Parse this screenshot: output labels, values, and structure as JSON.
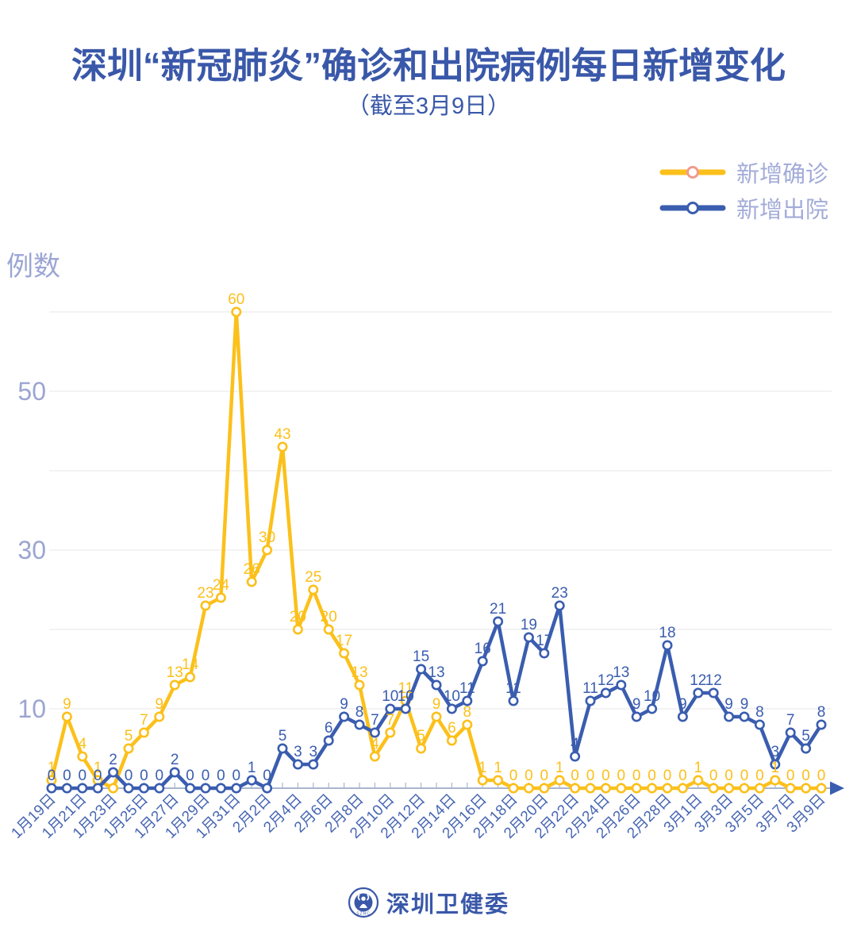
{
  "page": {
    "title": "深圳“新冠肺炎”确诊和出院病例每日新增变化",
    "subtitle": "（截至3月9日）",
    "footer_brand": "深圳卫健委",
    "footer_logo_letters": "SZHC"
  },
  "colors": {
    "background": "#FFFFFF",
    "title_text": "#3A58A9",
    "accent_confirmed": "#FBC01B",
    "accent_discharged": "#3A5DAF",
    "legend_text": "#A3ACD8",
    "axis_unit_text": "#9CA6D4",
    "y_tick_text": "#9BA5D2",
    "x_tick_text": "#4766B3",
    "gridline": "#E7E7E7",
    "axis_line": "#A9B6CE",
    "legend_confirmed_marker_ring": "#F09B8F"
  },
  "chart_data": {
    "type": "line",
    "title": "深圳“新冠肺炎”确诊和出院病例每日新增变化（截至3月9日）",
    "xlabel": "",
    "ylabel": "例数",
    "ylim": [
      0,
      62
    ],
    "grid": true,
    "legend_position": "top-right",
    "yticks_labeled": [
      10,
      30,
      50
    ],
    "gridline_values": [
      10,
      20,
      30,
      40,
      50,
      60
    ],
    "x_label_every": 2,
    "x": [
      "1月19日",
      "1月20日",
      "1月21日",
      "1月22日",
      "1月23日",
      "1月24日",
      "1月25日",
      "1月26日",
      "1月27日",
      "1月28日",
      "1月29日",
      "1月30日",
      "1月31日",
      "2月1日",
      "2月2日",
      "2月3日",
      "2月4日",
      "2月5日",
      "2月6日",
      "2月7日",
      "2月8日",
      "2月9日",
      "2月10日",
      "2月11日",
      "2月12日",
      "2月13日",
      "2月14日",
      "2月15日",
      "2月16日",
      "2月17日",
      "2月18日",
      "2月19日",
      "2月20日",
      "2月21日",
      "2月22日",
      "2月23日",
      "2月24日",
      "2月25日",
      "2月26日",
      "2月27日",
      "2月28日",
      "2月29日",
      "3月1日",
      "3月2日",
      "3月3日",
      "3月4日",
      "3月5日",
      "3月6日",
      "3月7日",
      "3月8日",
      "3月9日"
    ],
    "series": [
      {
        "name": "新增确诊",
        "color": "#FBC01B",
        "values": [
          1,
          9,
          4,
          1,
          0,
          5,
          7,
          9,
          13,
          14,
          23,
          24,
          60,
          26,
          30,
          43,
          20,
          25,
          20,
          17,
          13,
          4,
          7,
          11,
          5,
          9,
          6,
          8,
          1,
          1,
          0,
          0,
          0,
          1,
          0,
          0,
          0,
          0,
          0,
          0,
          0,
          0,
          1,
          0,
          0,
          0,
          0,
          1,
          0,
          0,
          0
        ],
        "hidden_value_label_indices": [
          4
        ]
      },
      {
        "name": "新增出院",
        "color": "#3A5DAF",
        "values": [
          0,
          0,
          0,
          0,
          2,
          0,
          0,
          0,
          2,
          0,
          0,
          0,
          0,
          1,
          0,
          5,
          3,
          3,
          6,
          9,
          8,
          7,
          10,
          10,
          15,
          13,
          10,
          11,
          16,
          21,
          11,
          19,
          17,
          23,
          4,
          11,
          12,
          13,
          9,
          10,
          18,
          9,
          12,
          12,
          9,
          9,
          8,
          3,
          7,
          5,
          8
        ],
        "hidden_value_label_indices": []
      }
    ]
  }
}
